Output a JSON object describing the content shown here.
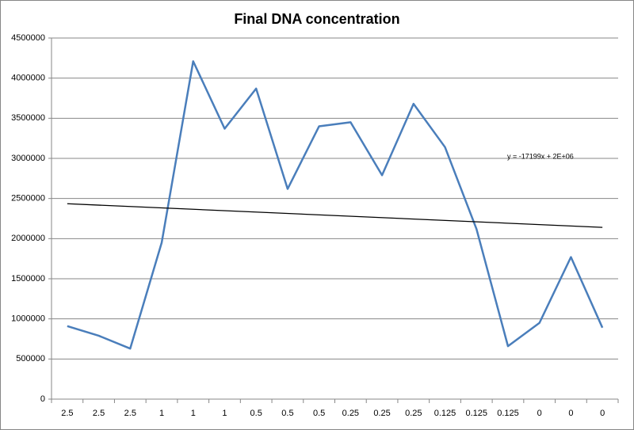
{
  "chart_data": {
    "type": "line",
    "title": "Final DNA concentration",
    "categories": [
      "2.5",
      "2.5",
      "2.5",
      "1",
      "1",
      "1",
      "0.5",
      "0.5",
      "0.5",
      "0.25",
      "0.25",
      "0.25",
      "0.125",
      "0.125",
      "0.125",
      "0",
      "0",
      "0"
    ],
    "values": [
      910000,
      790000,
      630000,
      1950000,
      4210000,
      3370000,
      3870000,
      2620000,
      3400000,
      3450000,
      2790000,
      3680000,
      3140000,
      2120000,
      660000,
      950000,
      1770000,
      890000
    ],
    "color": "#4a7ebb",
    "trendline": {
      "label": "y = -17199x + 2E+06",
      "values": [
        2435000,
        2140000
      ],
      "color": "#000000"
    },
    "ylim": [
      0,
      4500000
    ],
    "yticks": [
      0,
      500000,
      1000000,
      1500000,
      2000000,
      2500000,
      3000000,
      3500000,
      4000000,
      4500000
    ],
    "grid": true
  }
}
